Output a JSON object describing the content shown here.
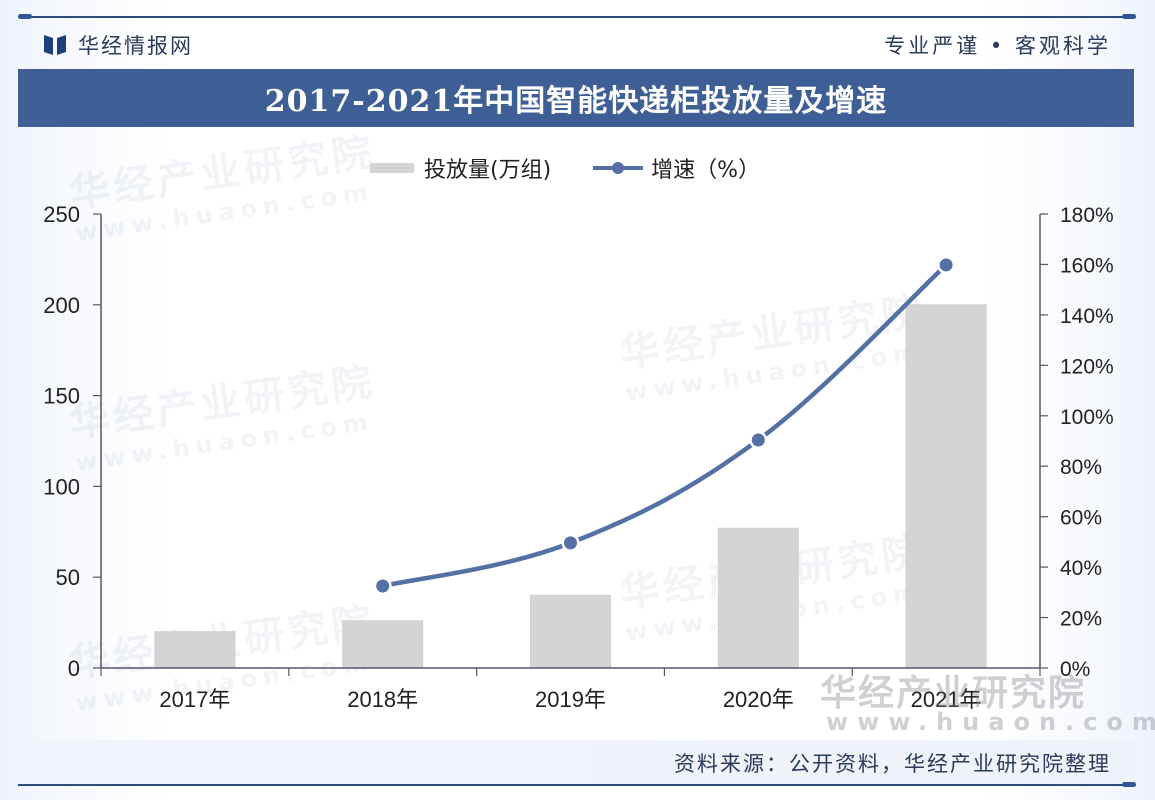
{
  "header": {
    "brand_name": "华经情报网",
    "slogan": "专业严谨 • 客观科学",
    "title": "2017-2021年中国智能快递柜投放量及增速"
  },
  "legend": {
    "bar_label": "投放量(万组)",
    "line_label": "增速（%）"
  },
  "watermark": {
    "text": "华经产业研究院",
    "url": "www.huaon.com"
  },
  "footer": {
    "source": "资料来源：公开资料，华经产业研究院整理"
  },
  "colors": {
    "title_bar": "#3e5f96",
    "bar": "#d4d4d6",
    "line": "#5470a4",
    "axis": "#5a5468",
    "text": "#222222"
  },
  "chart_data": {
    "type": "bar+line",
    "title": "2017-2021年中国智能快递柜投放量及增速",
    "categories": [
      "2017年",
      "2018年",
      "2019年",
      "2020年",
      "2021年"
    ],
    "series": [
      {
        "name": "投放量(万组)",
        "type": "bar",
        "axis": "left",
        "values": [
          20,
          26,
          40,
          77,
          200
        ]
      },
      {
        "name": "增速（%）",
        "type": "line",
        "axis": "right",
        "values": [
          null,
          32.5,
          49.6,
          90.4,
          159.8
        ]
      }
    ],
    "y_left": {
      "label": "",
      "ylim": [
        0,
        250
      ],
      "ticks": [
        "0",
        "50",
        "100",
        "150",
        "200",
        "250"
      ]
    },
    "y_right": {
      "label": "",
      "ylim": [
        0,
        180
      ],
      "ticks": [
        "0%",
        "20%",
        "40%",
        "60%",
        "80%",
        "100%",
        "120%",
        "140%",
        "160%",
        "180%"
      ]
    },
    "grid": false,
    "legend_position": "top"
  }
}
